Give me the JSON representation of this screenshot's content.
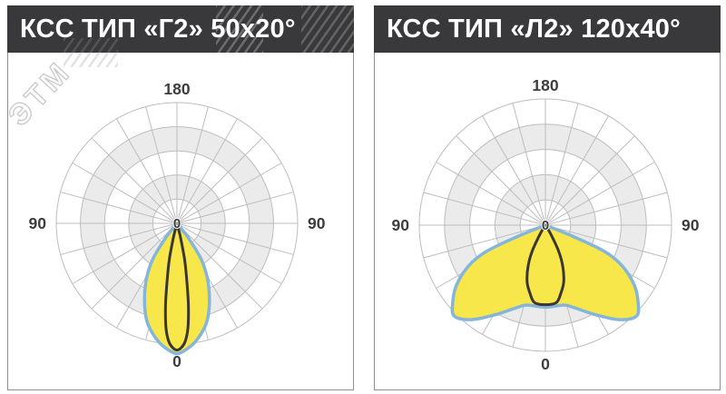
{
  "watermark": {
    "text": "ЭТМ"
  },
  "panels": [
    {
      "header": "КСС ТИП «Г2» 50x20°"
    },
    {
      "header": "КСС ТИП «Л2» 120x40°"
    }
  ],
  "style": {
    "header_bg": "#39393b",
    "header_text": "#ffffff",
    "panel_border": "#8f8f8f",
    "grid_color": "#bdbdbd",
    "ring_fills": [
      "#ffffff",
      "#ebebeb",
      "#ffffff",
      "#ebebeb",
      "#ffffff"
    ],
    "beam_fill": "#f8e74a",
    "beam_stroke": "#84b5da",
    "narrow_stroke": "#3a3631",
    "label_color": "#3d3d3d"
  },
  "chart_data": [
    {
      "type": "polar",
      "title": "КСС ТИП «Г2» 50x20°",
      "angle_unit": "deg",
      "rings": 5,
      "spoke_step_deg": 15,
      "r_max": 1.0,
      "angle_labels": {
        "top": "180",
        "left": "90",
        "right": "90",
        "bottom": "0",
        "center": "0"
      },
      "series": [
        {
          "name": "wide-plane-lobe-50deg",
          "style": "beam",
          "angles_deg": [
            0,
            4,
            9,
            15,
            19,
            24,
            29,
            34,
            38
          ],
          "r_rel": [
            1.08,
            1.05,
            0.99,
            0.89,
            0.8,
            0.66,
            0.52,
            0.36,
            0.15
          ]
        },
        {
          "name": "narrow-plane-lobe-20deg",
          "style": "narrow",
          "angles_deg": [
            0,
            2,
            4,
            6,
            8,
            10,
            12,
            14
          ],
          "r_rel": [
            1.05,
            1.03,
            0.98,
            0.87,
            0.68,
            0.46,
            0.3,
            0.12
          ]
        }
      ]
    },
    {
      "type": "polar",
      "title": "КСС ТИП «Л2» 120x40°",
      "angle_unit": "deg",
      "rings": 5,
      "spoke_step_deg": 15,
      "r_max": 1.0,
      "angle_labels": {
        "top": "180",
        "left": "90",
        "right": "90",
        "bottom": "0",
        "center": "0"
      },
      "series": [
        {
          "name": "wide-plane-lobe-120deg",
          "style": "beam",
          "angles_deg": [
            0,
            13,
            19,
            29,
            38,
            45,
            50,
            56,
            62,
            66,
            68
          ],
          "r_rel": [
            0.65,
            0.65,
            0.69,
            0.81,
            0.95,
            1.02,
            0.96,
            0.85,
            0.69,
            0.51,
            0.23
          ]
        },
        {
          "name": "narrow-plane-lobe-40deg",
          "style": "narrow",
          "angles_deg": [
            0,
            8,
            13,
            18,
            23,
            27,
            31
          ],
          "r_rel": [
            0.63,
            0.62,
            0.55,
            0.47,
            0.35,
            0.23,
            0.08
          ]
        }
      ]
    }
  ]
}
